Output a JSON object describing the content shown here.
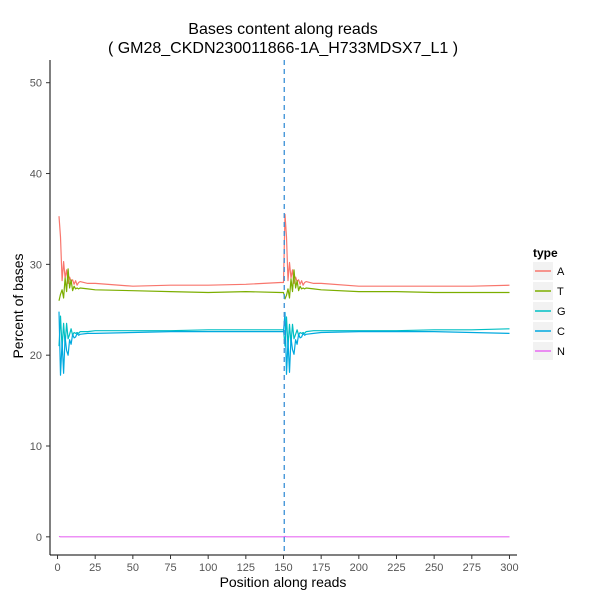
{
  "chart_data": {
    "type": "line",
    "title": "Bases content along reads",
    "subtitle": "( GM28_CKDN230011866-1A_H733MDSX7_L1 )",
    "xlabel": "Position along reads",
    "ylabel": "Percent of bases",
    "xlim": [
      -5,
      305
    ],
    "ylim": [
      -2,
      52.5
    ],
    "xticks": [
      0,
      25,
      50,
      75,
      100,
      125,
      150,
      175,
      200,
      225,
      250,
      275,
      300
    ],
    "yticks": [
      0,
      10,
      20,
      30,
      40,
      50
    ],
    "grid": false,
    "legend_position": "right",
    "legend_title": "type",
    "vline": {
      "x": 150.5,
      "color": "#3a8fd6",
      "style": "dashed"
    },
    "x": [
      1,
      2,
      3,
      4,
      5,
      6,
      7,
      8,
      9,
      10,
      11,
      12,
      13,
      14,
      15,
      20,
      25,
      50,
      75,
      100,
      125,
      148,
      150,
      151,
      152,
      153,
      154,
      155,
      156,
      157,
      158,
      159,
      160,
      161,
      162,
      163,
      164,
      165,
      170,
      175,
      200,
      225,
      250,
      275,
      300
    ],
    "series": [
      {
        "name": "A",
        "color": "#f8766d",
        "values": [
          35.3,
          33.0,
          28.2,
          30.3,
          28.5,
          29.4,
          27.9,
          28.6,
          28.1,
          28.3,
          27.8,
          28.2,
          27.7,
          28.0,
          28.1,
          27.9,
          27.9,
          27.6,
          27.7,
          27.7,
          27.8,
          28.0,
          28.0,
          35.5,
          33.0,
          28.2,
          30.2,
          28.5,
          29.4,
          27.9,
          28.6,
          28.1,
          28.3,
          27.8,
          28.2,
          27.7,
          28.0,
          28.1,
          27.9,
          27.9,
          27.6,
          27.6,
          27.6,
          27.6,
          27.7
        ]
      },
      {
        "name": "T",
        "color": "#7cae00",
        "values": [
          26.0,
          26.7,
          27.2,
          26.3,
          28.5,
          27.0,
          29.5,
          27.4,
          28.3,
          27.1,
          27.6,
          27.3,
          27.4,
          27.3,
          27.4,
          27.3,
          27.2,
          27.1,
          27.0,
          26.9,
          27.0,
          26.9,
          26.9,
          26.2,
          26.6,
          27.3,
          26.3,
          28.4,
          27.0,
          29.4,
          27.4,
          28.2,
          27.1,
          27.6,
          27.3,
          27.4,
          27.3,
          27.4,
          27.3,
          27.2,
          27.0,
          27.0,
          26.9,
          26.9,
          26.9
        ]
      },
      {
        "name": "G",
        "color": "#00bfc4",
        "values": [
          21.0,
          24.3,
          20.8,
          23.5,
          21.2,
          23.5,
          21.8,
          22.3,
          22.9,
          22.2,
          22.5,
          22.4,
          22.5,
          22.4,
          22.6,
          22.6,
          22.7,
          22.7,
          22.7,
          22.8,
          22.8,
          22.8,
          22.8,
          21.0,
          24.2,
          20.9,
          23.4,
          21.3,
          23.4,
          21.8,
          22.3,
          22.8,
          22.2,
          22.5,
          22.4,
          22.5,
          22.4,
          22.6,
          22.7,
          22.7,
          22.7,
          22.7,
          22.8,
          22.8,
          22.9
        ]
      },
      {
        "name": "C",
        "color": "#00a9df",
        "values": [
          24.8,
          17.8,
          21.5,
          18.0,
          22.0,
          20.5,
          20.0,
          21.7,
          21.2,
          22.3,
          21.9,
          22.0,
          22.4,
          22.2,
          22.3,
          22.4,
          22.4,
          22.5,
          22.6,
          22.6,
          22.6,
          22.6,
          22.6,
          24.7,
          17.9,
          21.6,
          18.1,
          21.9,
          20.6,
          20.1,
          21.7,
          21.2,
          22.3,
          21.9,
          22.0,
          22.4,
          22.2,
          22.3,
          22.4,
          22.5,
          22.6,
          22.6,
          22.6,
          22.5,
          22.4
        ]
      },
      {
        "name": "N",
        "color": "#e76bf3",
        "values": [
          0.05,
          0,
          0,
          0,
          0,
          0,
          0,
          0,
          0,
          0,
          0,
          0,
          0,
          0,
          0,
          0,
          0,
          0,
          0,
          0,
          0,
          0,
          0,
          0.05,
          0,
          0,
          0,
          0,
          0,
          0,
          0,
          0,
          0,
          0,
          0,
          0,
          0,
          0,
          0,
          0,
          0,
          0,
          0,
          0,
          0
        ]
      }
    ]
  }
}
